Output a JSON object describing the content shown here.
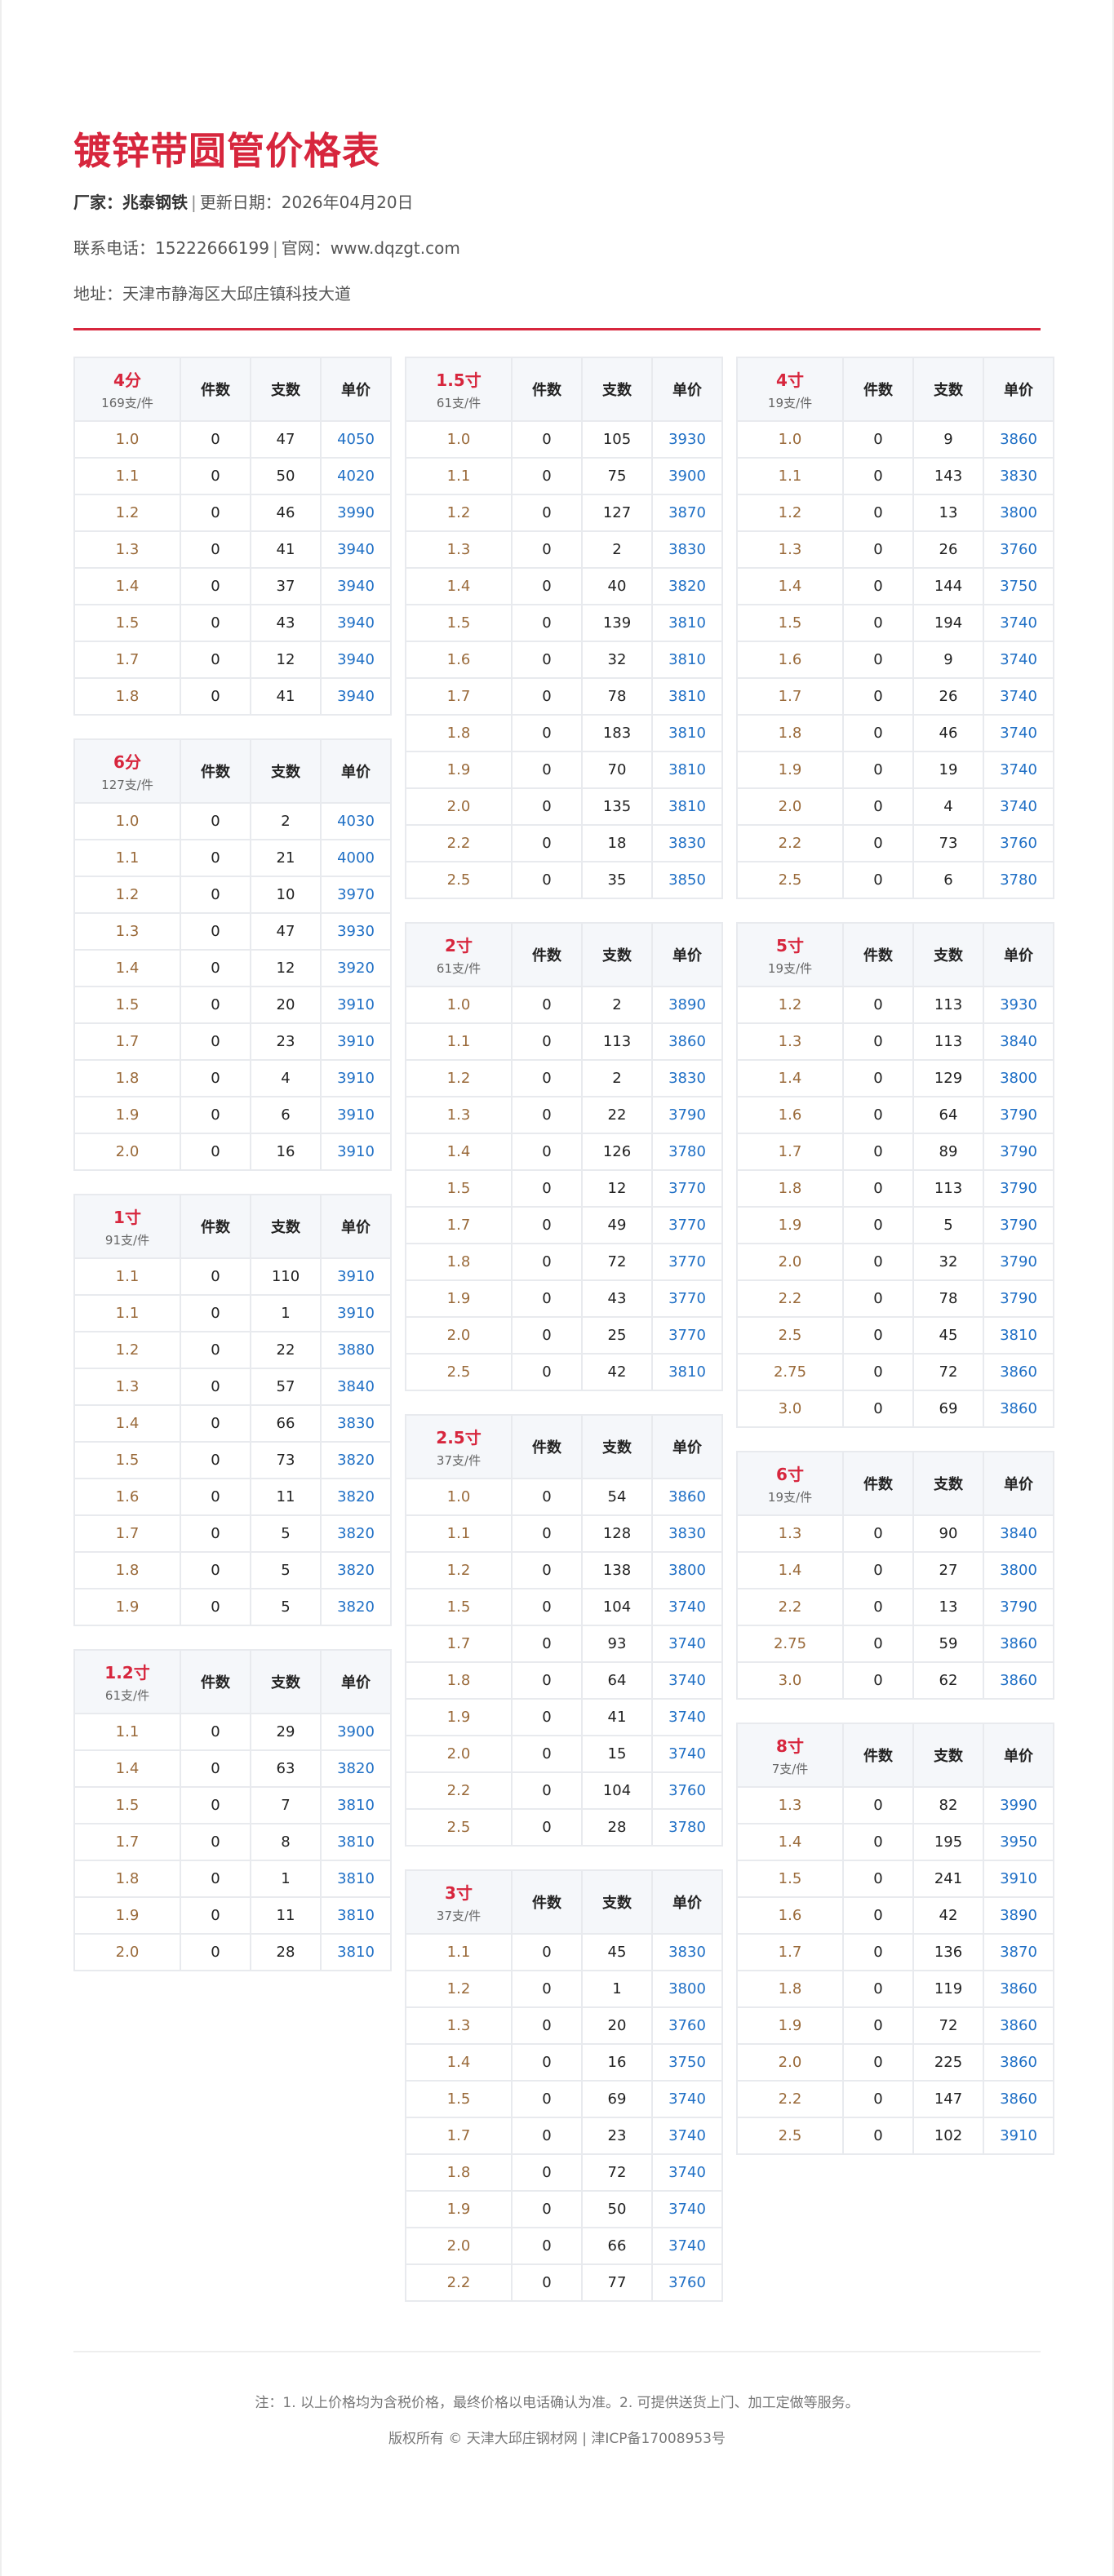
{
  "header": {
    "title": "镀锌带圆管价格表",
    "maker_label": "厂家：兆泰钢铁",
    "update_label": "更新日期：2026年04月20日",
    "phone_label": "联系电话：15222666199",
    "site_label": "官网：www.dqzgt.com",
    "address_label": "地址：天津市静海区大邱庄镇科技大道",
    "separator": "|"
  },
  "colors": {
    "accent": "#d7263d",
    "spec": "#9a6a3a",
    "price": "#1f6fc5"
  },
  "columns_header": [
    "件数",
    "支数",
    "单价"
  ],
  "tables": [
    [
      {
        "size": "4分",
        "per": "169支/件",
        "rows": [
          [
            "1.0",
            "0",
            "47",
            "4050"
          ],
          [
            "1.1",
            "0",
            "50",
            "4020"
          ],
          [
            "1.2",
            "0",
            "46",
            "3990"
          ],
          [
            "1.3",
            "0",
            "41",
            "3940"
          ],
          [
            "1.4",
            "0",
            "37",
            "3940"
          ],
          [
            "1.5",
            "0",
            "43",
            "3940"
          ],
          [
            "1.7",
            "0",
            "12",
            "3940"
          ],
          [
            "1.8",
            "0",
            "41",
            "3940"
          ]
        ]
      },
      {
        "size": "6分",
        "per": "127支/件",
        "rows": [
          [
            "1.0",
            "0",
            "2",
            "4030"
          ],
          [
            "1.1",
            "0",
            "21",
            "4000"
          ],
          [
            "1.2",
            "0",
            "10",
            "3970"
          ],
          [
            "1.3",
            "0",
            "47",
            "3930"
          ],
          [
            "1.4",
            "0",
            "12",
            "3920"
          ],
          [
            "1.5",
            "0",
            "20",
            "3910"
          ],
          [
            "1.7",
            "0",
            "23",
            "3910"
          ],
          [
            "1.8",
            "0",
            "4",
            "3910"
          ],
          [
            "1.9",
            "0",
            "6",
            "3910"
          ],
          [
            "2.0",
            "0",
            "16",
            "3910"
          ]
        ]
      },
      {
        "size": "1寸",
        "per": "91支/件",
        "rows": [
          [
            "1.1",
            "0",
            "110",
            "3910"
          ],
          [
            "1.1",
            "0",
            "1",
            "3910"
          ],
          [
            "1.2",
            "0",
            "22",
            "3880"
          ],
          [
            "1.3",
            "0",
            "57",
            "3840"
          ],
          [
            "1.4",
            "0",
            "66",
            "3830"
          ],
          [
            "1.5",
            "0",
            "73",
            "3820"
          ],
          [
            "1.6",
            "0",
            "11",
            "3820"
          ],
          [
            "1.7",
            "0",
            "5",
            "3820"
          ],
          [
            "1.8",
            "0",
            "5",
            "3820"
          ],
          [
            "1.9",
            "0",
            "5",
            "3820"
          ]
        ]
      },
      {
        "size": "1.2寸",
        "per": "61支/件",
        "rows": [
          [
            "1.1",
            "0",
            "29",
            "3900"
          ],
          [
            "1.4",
            "0",
            "63",
            "3820"
          ],
          [
            "1.5",
            "0",
            "7",
            "3810"
          ],
          [
            "1.7",
            "0",
            "8",
            "3810"
          ],
          [
            "1.8",
            "0",
            "1",
            "3810"
          ],
          [
            "1.9",
            "0",
            "11",
            "3810"
          ],
          [
            "2.0",
            "0",
            "28",
            "3810"
          ]
        ]
      }
    ],
    [
      {
        "size": "1.5寸",
        "per": "61支/件",
        "rows": [
          [
            "1.0",
            "0",
            "105",
            "3930"
          ],
          [
            "1.1",
            "0",
            "75",
            "3900"
          ],
          [
            "1.2",
            "0",
            "127",
            "3870"
          ],
          [
            "1.3",
            "0",
            "2",
            "3830"
          ],
          [
            "1.4",
            "0",
            "40",
            "3820"
          ],
          [
            "1.5",
            "0",
            "139",
            "3810"
          ],
          [
            "1.6",
            "0",
            "32",
            "3810"
          ],
          [
            "1.7",
            "0",
            "78",
            "3810"
          ],
          [
            "1.8",
            "0",
            "183",
            "3810"
          ],
          [
            "1.9",
            "0",
            "70",
            "3810"
          ],
          [
            "2.0",
            "0",
            "135",
            "3810"
          ],
          [
            "2.2",
            "0",
            "18",
            "3830"
          ],
          [
            "2.5",
            "0",
            "35",
            "3850"
          ]
        ]
      },
      {
        "size": "2寸",
        "per": "61支/件",
        "rows": [
          [
            "1.0",
            "0",
            "2",
            "3890"
          ],
          [
            "1.1",
            "0",
            "113",
            "3860"
          ],
          [
            "1.2",
            "0",
            "2",
            "3830"
          ],
          [
            "1.3",
            "0",
            "22",
            "3790"
          ],
          [
            "1.4",
            "0",
            "126",
            "3780"
          ],
          [
            "1.5",
            "0",
            "12",
            "3770"
          ],
          [
            "1.7",
            "0",
            "49",
            "3770"
          ],
          [
            "1.8",
            "0",
            "72",
            "3770"
          ],
          [
            "1.9",
            "0",
            "43",
            "3770"
          ],
          [
            "2.0",
            "0",
            "25",
            "3770"
          ],
          [
            "2.5",
            "0",
            "42",
            "3810"
          ]
        ]
      },
      {
        "size": "2.5寸",
        "per": "37支/件",
        "rows": [
          [
            "1.0",
            "0",
            "54",
            "3860"
          ],
          [
            "1.1",
            "0",
            "128",
            "3830"
          ],
          [
            "1.2",
            "0",
            "138",
            "3800"
          ],
          [
            "1.5",
            "0",
            "104",
            "3740"
          ],
          [
            "1.7",
            "0",
            "93",
            "3740"
          ],
          [
            "1.8",
            "0",
            "64",
            "3740"
          ],
          [
            "1.9",
            "0",
            "41",
            "3740"
          ],
          [
            "2.0",
            "0",
            "15",
            "3740"
          ],
          [
            "2.2",
            "0",
            "104",
            "3760"
          ],
          [
            "2.5",
            "0",
            "28",
            "3780"
          ]
        ]
      },
      {
        "size": "3寸",
        "per": "37支/件",
        "rows": [
          [
            "1.1",
            "0",
            "45",
            "3830"
          ],
          [
            "1.2",
            "0",
            "1",
            "3800"
          ],
          [
            "1.3",
            "0",
            "20",
            "3760"
          ],
          [
            "1.4",
            "0",
            "16",
            "3750"
          ],
          [
            "1.5",
            "0",
            "69",
            "3740"
          ],
          [
            "1.7",
            "0",
            "23",
            "3740"
          ],
          [
            "1.8",
            "0",
            "72",
            "3740"
          ],
          [
            "1.9",
            "0",
            "50",
            "3740"
          ],
          [
            "2.0",
            "0",
            "66",
            "3740"
          ],
          [
            "2.2",
            "0",
            "77",
            "3760"
          ]
        ]
      }
    ],
    [
      {
        "size": "4寸",
        "per": "19支/件",
        "rows": [
          [
            "1.0",
            "0",
            "9",
            "3860"
          ],
          [
            "1.1",
            "0",
            "143",
            "3830"
          ],
          [
            "1.2",
            "0",
            "13",
            "3800"
          ],
          [
            "1.3",
            "0",
            "26",
            "3760"
          ],
          [
            "1.4",
            "0",
            "144",
            "3750"
          ],
          [
            "1.5",
            "0",
            "194",
            "3740"
          ],
          [
            "1.6",
            "0",
            "9",
            "3740"
          ],
          [
            "1.7",
            "0",
            "26",
            "3740"
          ],
          [
            "1.8",
            "0",
            "46",
            "3740"
          ],
          [
            "1.9",
            "0",
            "19",
            "3740"
          ],
          [
            "2.0",
            "0",
            "4",
            "3740"
          ],
          [
            "2.2",
            "0",
            "73",
            "3760"
          ],
          [
            "2.5",
            "0",
            "6",
            "3780"
          ]
        ]
      },
      {
        "size": "5寸",
        "per": "19支/件",
        "rows": [
          [
            "1.2",
            "0",
            "113",
            "3930"
          ],
          [
            "1.3",
            "0",
            "113",
            "3840"
          ],
          [
            "1.4",
            "0",
            "129",
            "3800"
          ],
          [
            "1.6",
            "0",
            "64",
            "3790"
          ],
          [
            "1.7",
            "0",
            "89",
            "3790"
          ],
          [
            "1.8",
            "0",
            "113",
            "3790"
          ],
          [
            "1.9",
            "0",
            "5",
            "3790"
          ],
          [
            "2.0",
            "0",
            "32",
            "3790"
          ],
          [
            "2.2",
            "0",
            "78",
            "3790"
          ],
          [
            "2.5",
            "0",
            "45",
            "3810"
          ],
          [
            "2.75",
            "0",
            "72",
            "3860"
          ],
          [
            "3.0",
            "0",
            "69",
            "3860"
          ]
        ]
      },
      {
        "size": "6寸",
        "per": "19支/件",
        "rows": [
          [
            "1.3",
            "0",
            "90",
            "3840"
          ],
          [
            "1.4",
            "0",
            "27",
            "3800"
          ],
          [
            "2.2",
            "0",
            "13",
            "3790"
          ],
          [
            "2.75",
            "0",
            "59",
            "3860"
          ],
          [
            "3.0",
            "0",
            "62",
            "3860"
          ]
        ]
      },
      {
        "size": "8寸",
        "per": "7支/件",
        "rows": [
          [
            "1.3",
            "0",
            "82",
            "3990"
          ],
          [
            "1.4",
            "0",
            "195",
            "3950"
          ],
          [
            "1.5",
            "0",
            "241",
            "3910"
          ],
          [
            "1.6",
            "0",
            "42",
            "3890"
          ],
          [
            "1.7",
            "0",
            "136",
            "3870"
          ],
          [
            "1.8",
            "0",
            "119",
            "3860"
          ],
          [
            "1.9",
            "0",
            "72",
            "3860"
          ],
          [
            "2.0",
            "0",
            "225",
            "3860"
          ],
          [
            "2.2",
            "0",
            "147",
            "3860"
          ],
          [
            "2.5",
            "0",
            "102",
            "3910"
          ]
        ]
      }
    ]
  ],
  "footer": {
    "note": "注：1. 以上价格均为含税价格，最终价格以电话确认为准。2. 可提供送货上门、加工定做等服务。",
    "copyright": "版权所有 © 天津大邱庄钢材网 | 津ICP备17008953号"
  }
}
